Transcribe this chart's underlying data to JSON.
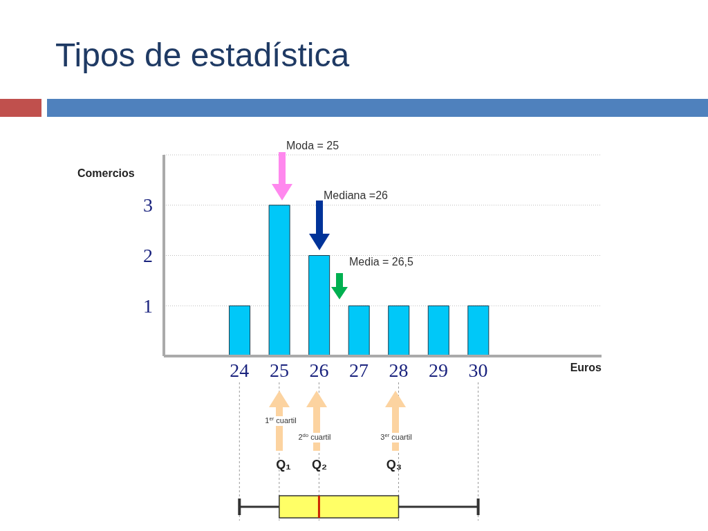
{
  "chart_data": [
    {
      "type": "bar",
      "title": "Tipos de estadística",
      "ylabel": "Comercios",
      "xlabel": "Euros",
      "x": [
        24,
        25,
        26,
        27,
        28,
        29,
        30
      ],
      "values": [
        1,
        3,
        2,
        1,
        1,
        1,
        1
      ],
      "color": "#00c8f8",
      "xlim": [
        22.1,
        33.1
      ],
      "xticks": [
        24,
        25,
        26,
        27,
        28,
        29,
        30
      ],
      "ylim": [
        0,
        4
      ],
      "yticks": [
        1,
        2,
        3
      ],
      "grid": "y",
      "annotations": [
        "Moda = 25",
        "Mediana =26",
        "Media = 26,5"
      ]
    },
    {
      "type": "box",
      "orientation": "horizontal",
      "categories": [
        null
      ],
      "color": "#ffff66",
      "boxes": [
        {
          "low": 24,
          "q1": 25,
          "median": 26,
          "q3": 28,
          "high": 30
        }
      ],
      "xlim": [
        24,
        30
      ],
      "xticks": [
        24,
        25,
        26,
        28,
        30
      ],
      "grid": "x",
      "tick_labels": false,
      "annotations": [
        "1$^{er}$ cuartil",
        "2$^{do}$ cuartil",
        "3$^{er}$ cuartil",
        "Q₁",
        "Q₂",
        "Q₃"
      ]
    }
  ]
}
